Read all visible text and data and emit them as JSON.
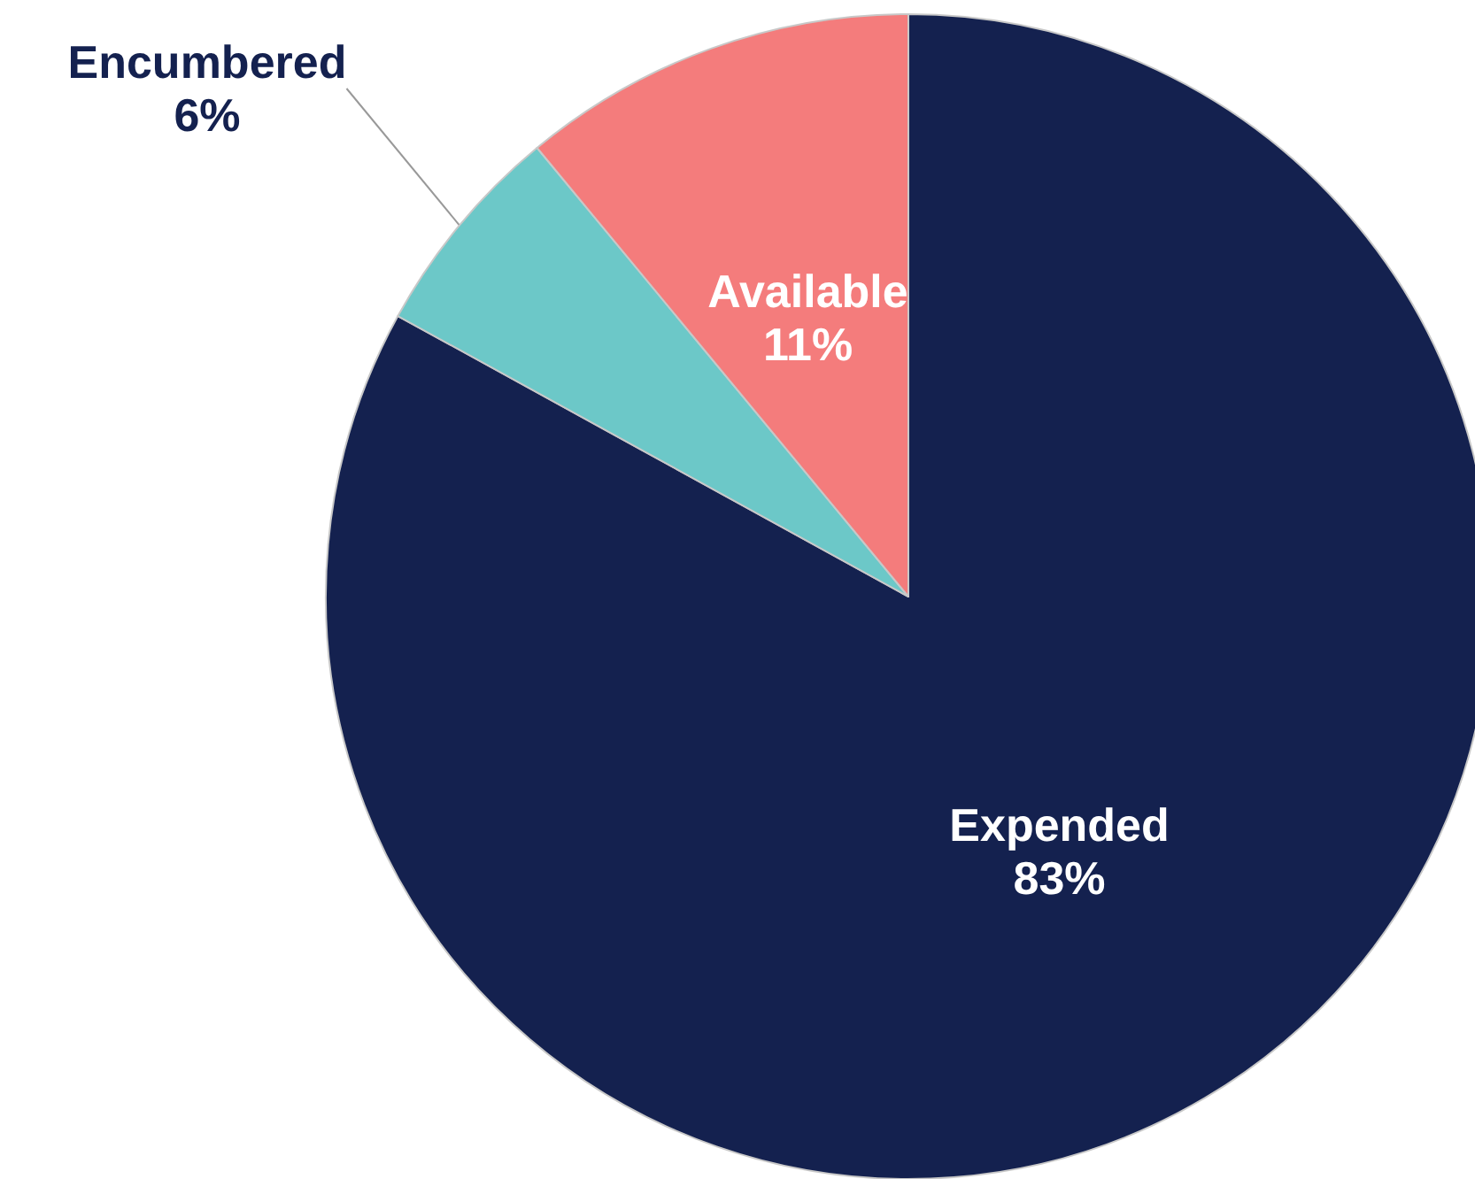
{
  "chart_data": {
    "type": "pie",
    "categories": [
      "Expended",
      "Encumbered",
      "Available"
    ],
    "values": [
      83,
      6,
      11
    ],
    "colors": [
      "#14214f",
      "#6cc8c8",
      "#f47c7c"
    ],
    "value_labels": [
      "83%",
      "6%",
      "11%"
    ]
  }
}
